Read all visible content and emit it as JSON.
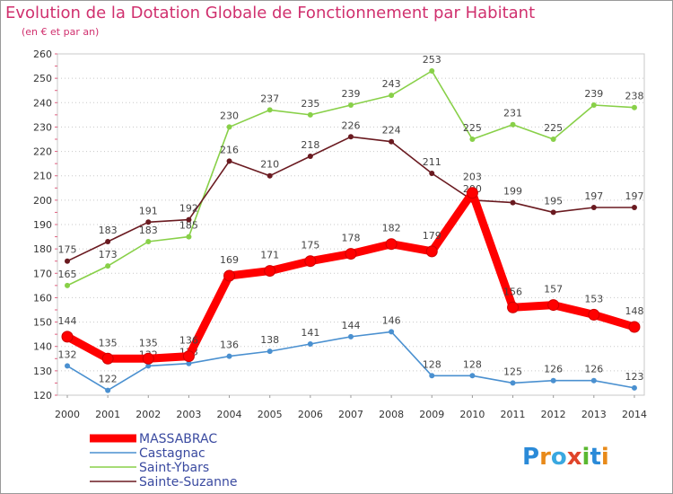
{
  "chart_data": {
    "type": "line",
    "title": "Evolution de la Dotation Globale de Fonctionnement par Habitant",
    "subtitle": "(en € et par an)",
    "xlabel": "",
    "ylabel": "",
    "categories": [
      "2000",
      "2001",
      "2002",
      "2003",
      "2004",
      "2005",
      "2006",
      "2007",
      "2008",
      "2009",
      "2010",
      "2011",
      "2012",
      "2013",
      "2014"
    ],
    "ylim": [
      120,
      260
    ],
    "yticks": [
      120,
      130,
      140,
      150,
      160,
      170,
      180,
      190,
      200,
      210,
      220,
      230,
      240,
      250,
      260
    ],
    "grid": "horizontal-dotted",
    "legend_position": "bottom-left",
    "series": [
      {
        "name": "Castagnac",
        "color": "#4a90d0",
        "values": [
          132,
          122,
          132,
          133,
          136,
          138,
          141,
          144,
          146,
          128,
          128,
          125,
          126,
          126,
          123
        ]
      },
      {
        "name": "Saint-Ybars",
        "color": "#88d048",
        "values": [
          165,
          173,
          183,
          185,
          230,
          237,
          235,
          239,
          243,
          253,
          225,
          231,
          225,
          239,
          238
        ]
      },
      {
        "name": "Sainte-Suzanne",
        "color": "#6a1a20",
        "values": [
          175,
          183,
          191,
          192,
          216,
          210,
          218,
          226,
          224,
          211,
          200,
          199,
          195,
          197,
          197
        ]
      },
      {
        "name": "MASSABRAC",
        "color": "#ff0000",
        "values": [
          144,
          135,
          135,
          136,
          169,
          171,
          175,
          178,
          182,
          179,
          203,
          156,
          157,
          153,
          148
        ]
      }
    ],
    "legend_order": [
      "MASSABRAC",
      "Castagnac",
      "Saint-Ybars",
      "Sainte-Suzanne"
    ],
    "logo_text": "Proxiti"
  }
}
